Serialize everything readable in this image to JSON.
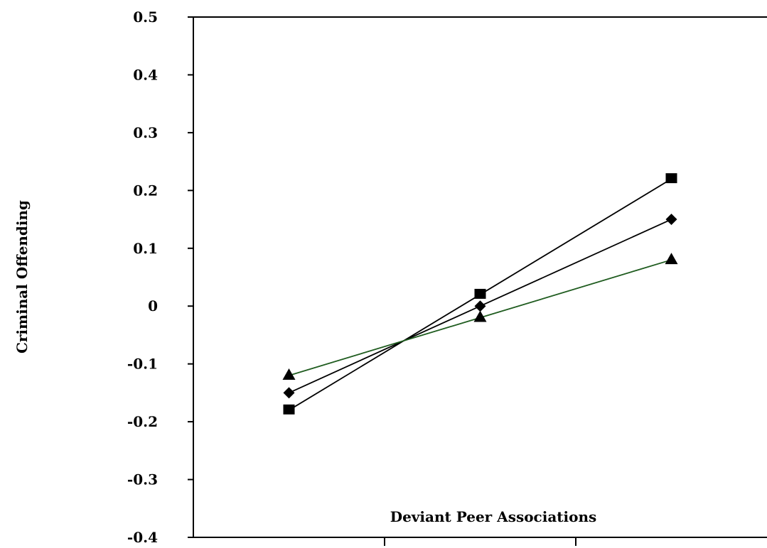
{
  "chart_data": {
    "type": "line",
    "title": "",
    "xlabel": "Deviant Peer Associations",
    "ylabel": "Criminal Offending",
    "ylim": [
      -0.4,
      0.5
    ],
    "yticks": [
      0.5,
      0.4,
      0.3,
      0.2,
      0.1,
      0,
      -0.1,
      -0.2,
      -0.3,
      -0.4
    ],
    "ytick_labels": [
      "0.5",
      "0.4",
      "0.3",
      "0.2",
      "0.1",
      "0",
      "-0.1",
      "-0.2",
      "-0.3",
      "-0.4"
    ],
    "x": [
      1,
      2,
      3
    ],
    "x_ticks_at": [
      1.5,
      2.5
    ],
    "xlim": [
      0.5,
      3.5
    ],
    "grid": false,
    "legend": "none",
    "series": [
      {
        "marker": "square",
        "color": "#000000",
        "values": [
          -0.18,
          0.02,
          0.22
        ]
      },
      {
        "marker": "diamond",
        "color": "#000000",
        "values": [
          -0.15,
          0.0,
          0.15
        ]
      },
      {
        "marker": "triangle",
        "color": "#1f5c1f",
        "values": [
          -0.12,
          -0.02,
          0.08
        ]
      }
    ]
  }
}
